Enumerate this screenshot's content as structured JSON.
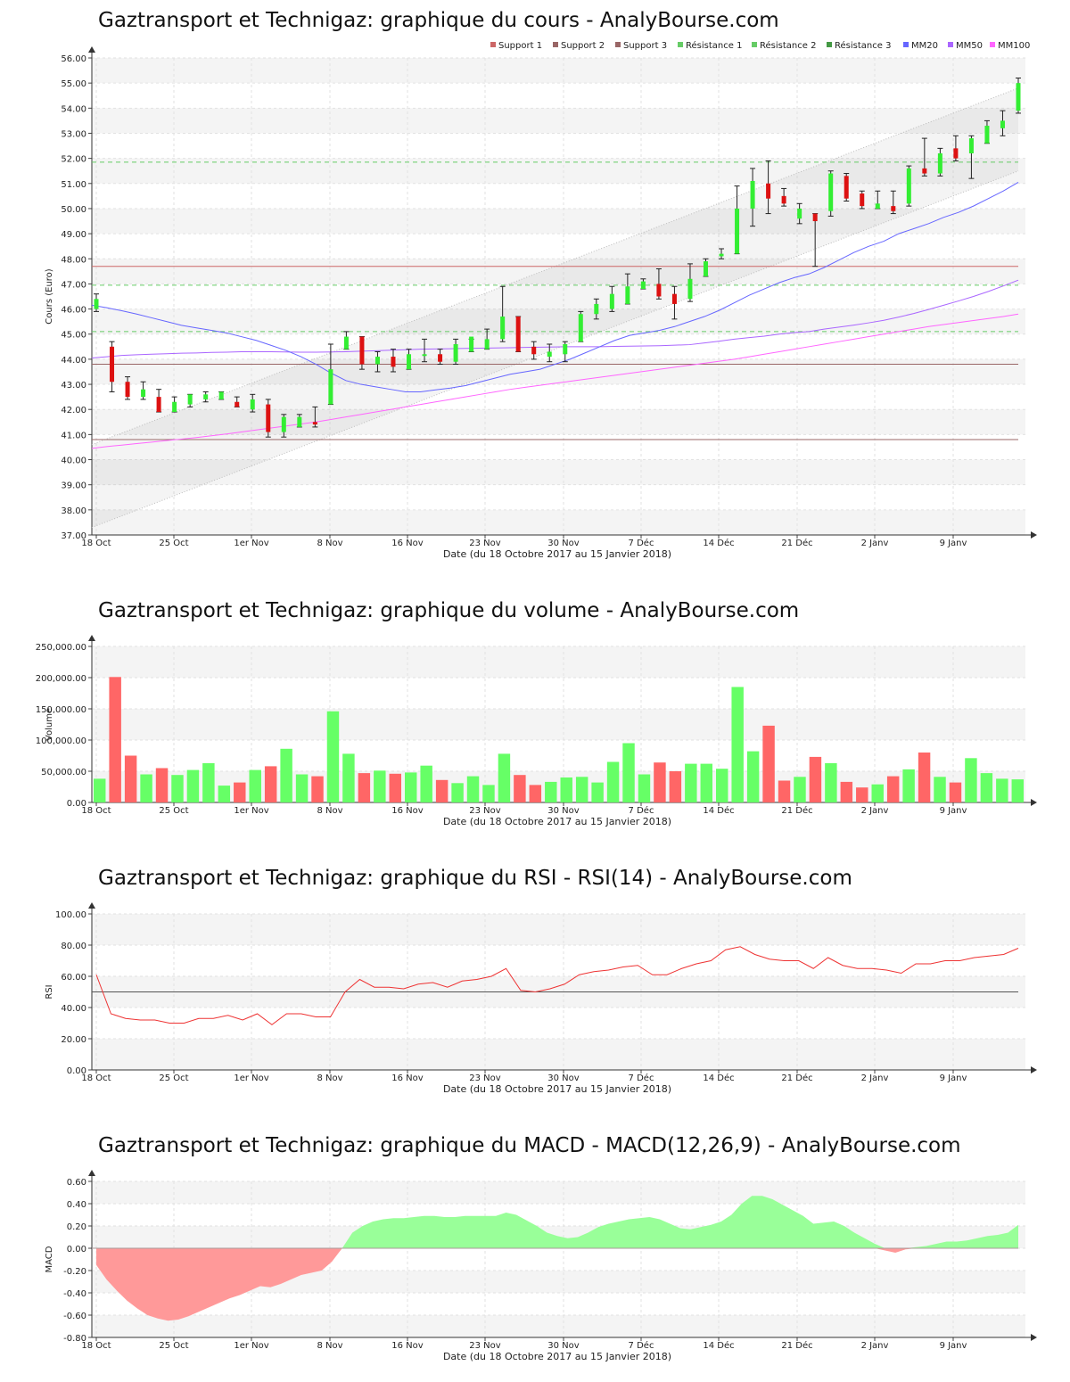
{
  "colors": {
    "up": "#66ff66",
    "down": "#ff6666",
    "support1": "#cc6666",
    "support2": "#996666",
    "support3": "#996666",
    "resistance": "#66cc66",
    "mm20": "#6666ff",
    "mm50": "#aa66ff",
    "mm100": "#ff66ff",
    "rsi": "#ee3333",
    "macd_pos": "#99ff99",
    "macd_neg": "#ff9999"
  },
  "x_ticks": [
    "18 Oct",
    "25 Oct",
    "1er Nov",
    "8 Nov",
    "16 Nov",
    "23 Nov",
    "30 Nov",
    "7 Déc",
    "14 Déc",
    "21 Déc",
    "2 Janv",
    "9 Janv"
  ],
  "x_caption": "Date (du 18 Octobre 2017 au 15 Janvier 2018)",
  "legend": [
    "Support 1",
    "Support 2",
    "Support 3",
    "Résistance 1",
    "Résistance 2",
    "Résistance 3",
    "MM20",
    "MM50",
    "MM100"
  ],
  "chart_data": [
    {
      "type": "candlestick",
      "title": "Gaztransport et Technigaz: graphique du cours - AnalyBourse.com",
      "ylabel": "Cours (Euro)",
      "ylim": [
        37,
        56
      ],
      "yticks": [
        "37.00",
        "38.00",
        "39.00",
        "40.00",
        "41.00",
        "42.00",
        "43.00",
        "44.00",
        "45.00",
        "46.00",
        "47.00",
        "48.00",
        "49.00",
        "50.00",
        "51.00",
        "52.00",
        "53.00",
        "54.00",
        "55.00",
        "56.00"
      ],
      "ohlc": [
        [
          46.0,
          46.6,
          45.9,
          46.4
        ],
        [
          44.5,
          44.7,
          42.7,
          43.1
        ],
        [
          43.1,
          43.3,
          42.4,
          42.5
        ],
        [
          42.5,
          43.1,
          42.4,
          42.8
        ],
        [
          42.5,
          42.8,
          41.9,
          41.9
        ],
        [
          41.9,
          42.5,
          41.9,
          42.3
        ],
        [
          42.2,
          42.6,
          42.1,
          42.6
        ],
        [
          42.4,
          42.7,
          42.3,
          42.6
        ],
        [
          42.4,
          42.7,
          42.4,
          42.7
        ],
        [
          42.3,
          42.5,
          42.1,
          42.1
        ],
        [
          42.0,
          42.6,
          41.9,
          42.4
        ],
        [
          42.2,
          42.4,
          40.9,
          41.1
        ],
        [
          41.1,
          41.8,
          40.9,
          41.7
        ],
        [
          41.3,
          41.8,
          41.3,
          41.7
        ],
        [
          41.5,
          42.1,
          41.3,
          41.4
        ],
        [
          42.2,
          44.6,
          42.2,
          43.6
        ],
        [
          44.4,
          45.1,
          44.4,
          44.9
        ],
        [
          44.9,
          44.9,
          43.6,
          43.8
        ],
        [
          43.8,
          44.3,
          43.5,
          44.1
        ],
        [
          44.1,
          44.4,
          43.5,
          43.7
        ],
        [
          43.6,
          44.4,
          43.6,
          44.2
        ],
        [
          44.2,
          44.8,
          43.9,
          44.2
        ],
        [
          44.2,
          44.4,
          43.8,
          43.9
        ],
        [
          43.9,
          44.8,
          43.8,
          44.6
        ],
        [
          44.3,
          44.8,
          44.3,
          44.9
        ],
        [
          44.4,
          45.2,
          44.4,
          44.8
        ],
        [
          44.8,
          46.9,
          44.7,
          45.7
        ],
        [
          45.7,
          45.7,
          44.3,
          44.3
        ],
        [
          44.5,
          44.7,
          44.0,
          44.2
        ],
        [
          44.1,
          44.6,
          43.9,
          44.3
        ],
        [
          44.2,
          44.7,
          43.9,
          44.6
        ],
        [
          44.7,
          45.9,
          44.7,
          45.8
        ],
        [
          45.8,
          46.4,
          45.6,
          46.2
        ],
        [
          46.0,
          46.9,
          45.9,
          46.6
        ],
        [
          46.2,
          47.4,
          46.2,
          46.9
        ],
        [
          46.8,
          47.2,
          46.8,
          47.1
        ],
        [
          47.0,
          47.6,
          46.4,
          46.5
        ],
        [
          46.6,
          46.9,
          45.6,
          46.2
        ],
        [
          46.4,
          47.8,
          46.3,
          47.2
        ],
        [
          47.3,
          48.0,
          47.3,
          47.9
        ],
        [
          48.1,
          48.4,
          48.0,
          48.2
        ],
        [
          48.2,
          50.9,
          48.2,
          50.0
        ],
        [
          50.0,
          51.6,
          49.3,
          51.1
        ],
        [
          51.0,
          51.9,
          49.8,
          50.4
        ],
        [
          50.5,
          50.8,
          50.1,
          50.2
        ],
        [
          49.6,
          50.2,
          49.4,
          50.0
        ],
        [
          49.8,
          49.8,
          47.7,
          49.5
        ],
        [
          49.9,
          51.5,
          49.7,
          51.4
        ],
        [
          51.3,
          51.4,
          50.3,
          50.4
        ],
        [
          50.6,
          50.7,
          50.0,
          50.1
        ],
        [
          50.0,
          50.7,
          50.0,
          50.2
        ],
        [
          50.1,
          50.7,
          49.8,
          49.9
        ],
        [
          50.2,
          51.7,
          50.1,
          51.6
        ],
        [
          51.6,
          52.8,
          51.3,
          51.4
        ],
        [
          51.4,
          52.4,
          51.3,
          52.2
        ],
        [
          52.4,
          52.9,
          51.9,
          52.0
        ],
        [
          52.2,
          52.9,
          51.2,
          52.8
        ],
        [
          52.6,
          53.5,
          52.6,
          53.3
        ],
        [
          53.2,
          53.9,
          52.9,
          53.5
        ],
        [
          53.9,
          55.2,
          53.8,
          55.0
        ]
      ],
      "support_levels": {
        "support1": 47.7,
        "support2": 43.8,
        "support3": 40.8
      },
      "resistance_levels": {
        "resistance1": 51.85,
        "resistance2": 46.95,
        "resistance3": 45.1
      },
      "channel_upper": [
        40.6,
        54.8
      ],
      "channel_lower": [
        37.3,
        51.5
      ],
      "mm20": [
        46.15,
        46.05,
        45.93,
        45.8,
        45.65,
        45.5,
        45.35,
        45.25,
        45.15,
        45.05,
        44.9,
        44.75,
        44.55,
        44.35,
        44.1,
        43.8,
        43.45,
        43.15,
        43.0,
        42.9,
        42.8,
        42.7,
        42.7,
        42.78,
        42.85,
        42.95,
        43.1,
        43.25,
        43.4,
        43.5,
        43.6,
        43.8,
        44.0,
        44.25,
        44.5,
        44.75,
        44.95,
        45.05,
        45.15,
        45.3,
        45.5,
        45.7,
        45.95,
        46.25,
        46.55,
        46.8,
        47.05,
        47.25,
        47.4,
        47.65,
        47.95,
        48.25,
        48.5,
        48.7,
        49.0,
        49.2,
        49.4,
        49.65,
        49.85,
        50.1,
        50.4,
        50.7,
        51.05
      ],
      "mm50": [
        44.05,
        44.1,
        44.15,
        44.18,
        44.2,
        44.22,
        44.24,
        44.25,
        44.27,
        44.28,
        44.3,
        44.3,
        44.3,
        44.29,
        44.28,
        44.28,
        44.29,
        44.3,
        44.32,
        44.34,
        44.36,
        44.38,
        44.4,
        44.41,
        44.42,
        44.43,
        44.44,
        44.45,
        44.46,
        44.47,
        44.48,
        44.49,
        44.5,
        44.5,
        44.5,
        44.51,
        44.52,
        44.53,
        44.54,
        44.56,
        44.58,
        44.65,
        44.72,
        44.8,
        44.86,
        44.92,
        45.0,
        45.06,
        45.1,
        45.2,
        45.28,
        45.36,
        45.45,
        45.55,
        45.68,
        45.82,
        45.98,
        46.15,
        46.32,
        46.5,
        46.7,
        46.92,
        47.15
      ],
      "mm100": [
        40.45,
        40.52,
        40.58,
        40.64,
        40.7,
        40.76,
        40.82,
        40.88,
        40.95,
        41.02,
        41.1,
        41.18,
        41.26,
        41.34,
        41.42,
        41.5,
        41.6,
        41.7,
        41.8,
        41.9,
        42.0,
        42.1,
        42.2,
        42.3,
        42.4,
        42.5,
        42.6,
        42.7,
        42.8,
        42.88,
        42.96,
        43.04,
        43.12,
        43.2,
        43.28,
        43.36,
        43.44,
        43.52,
        43.6,
        43.68,
        43.76,
        43.84,
        43.92,
        44.0,
        44.1,
        44.2,
        44.3,
        44.4,
        44.5,
        44.6,
        44.7,
        44.8,
        44.9,
        45.0,
        45.1,
        45.2,
        45.3,
        45.38,
        45.46,
        45.54,
        45.62,
        45.7,
        45.8
      ]
    },
    {
      "type": "bar",
      "title": "Gaztransport et Technigaz: graphique du volume - AnalyBourse.com",
      "ylabel": "Volume",
      "ylim": [
        0,
        250000
      ],
      "yticks": [
        "0.00",
        "50,000.00",
        "100,000.00",
        "150,000.00",
        "200,000.00",
        "250,000.00"
      ],
      "values": [
        38000,
        201000,
        75000,
        45000,
        55000,
        44000,
        52000,
        63000,
        27000,
        32000,
        52000,
        58000,
        86000,
        45000,
        42000,
        146000,
        78000,
        47000,
        51000,
        46000,
        48000,
        59000,
        36000,
        31000,
        42000,
        28000,
        78000,
        44000,
        28000,
        33000,
        40000,
        41000,
        32000,
        65000,
        95000,
        45000,
        64000,
        50000,
        62000,
        62000,
        54000,
        185000,
        82000,
        123000,
        35000,
        41000,
        73000,
        63000,
        33000,
        24000,
        29000,
        42000,
        53000,
        80000,
        41000,
        32000,
        71000,
        47000,
        38000,
        37000
      ],
      "directions": [
        "u",
        "d",
        "d",
        "u",
        "d",
        "u",
        "u",
        "u",
        "u",
        "d",
        "u",
        "d",
        "u",
        "u",
        "d",
        "u",
        "u",
        "d",
        "u",
        "d",
        "u",
        "u",
        "d",
        "u",
        "u",
        "u",
        "u",
        "d",
        "d",
        "u",
        "u",
        "u",
        "u",
        "u",
        "u",
        "u",
        "d",
        "d",
        "u",
        "u",
        "u",
        "u",
        "u",
        "d",
        "d",
        "u",
        "d",
        "u",
        "d",
        "d",
        "u",
        "d",
        "u",
        "d",
        "u",
        "d",
        "u",
        "u",
        "u",
        "u"
      ]
    },
    {
      "type": "line",
      "title": "Gaztransport et Technigaz: graphique du RSI - RSI(14) - AnalyBourse.com",
      "ylabel": "RSI",
      "ylim": [
        0,
        100
      ],
      "yticks": [
        "0.00",
        "20.00",
        "40.00",
        "60.00",
        "80.00",
        "100.00"
      ],
      "reference_line": 50,
      "values": [
        61,
        36,
        33,
        32,
        32,
        30,
        30,
        33,
        33,
        35,
        32,
        36,
        29,
        36,
        36,
        34,
        34,
        50,
        58,
        53,
        53,
        52,
        55,
        56,
        53,
        57,
        58,
        60,
        65,
        51,
        50,
        52,
        55,
        61,
        63,
        64,
        66,
        67,
        61,
        61,
        65,
        68,
        70,
        77,
        79,
        74,
        71,
        70,
        70,
        65,
        72,
        67,
        65,
        65,
        64,
        62,
        68,
        68,
        70,
        70,
        72,
        73,
        74,
        78
      ]
    },
    {
      "type": "area",
      "title": "Gaztransport et Technigaz: graphique du MACD - MACD(12,26,9) - AnalyBourse.com",
      "ylabel": "MACD",
      "ylim": [
        -0.8,
        0.6
      ],
      "yticks": [
        "-0.80",
        "-0.60",
        "-0.40",
        "-0.20",
        "0.00",
        "0.20",
        "0.40",
        "0.60"
      ],
      "values": [
        -0.15,
        -0.28,
        -0.38,
        -0.47,
        -0.54,
        -0.6,
        -0.63,
        -0.65,
        -0.64,
        -0.61,
        -0.57,
        -0.53,
        -0.49,
        -0.45,
        -0.42,
        -0.38,
        -0.34,
        -0.35,
        -0.32,
        -0.28,
        -0.24,
        -0.22,
        -0.2,
        -0.12,
        0.0,
        0.14,
        0.2,
        0.24,
        0.26,
        0.27,
        0.27,
        0.28,
        0.29,
        0.29,
        0.28,
        0.28,
        0.29,
        0.29,
        0.29,
        0.29,
        0.32,
        0.3,
        0.25,
        0.2,
        0.14,
        0.11,
        0.09,
        0.1,
        0.14,
        0.19,
        0.22,
        0.24,
        0.26,
        0.27,
        0.28,
        0.26,
        0.22,
        0.18,
        0.17,
        0.19,
        0.21,
        0.24,
        0.3,
        0.4,
        0.47,
        0.47,
        0.44,
        0.39,
        0.34,
        0.29,
        0.22,
        0.23,
        0.24,
        0.2,
        0.14,
        0.09,
        0.04,
        -0.02,
        -0.04,
        -0.01,
        0.01,
        0.02,
        0.04,
        0.06,
        0.06,
        0.07,
        0.09,
        0.11,
        0.12,
        0.14,
        0.21
      ]
    }
  ]
}
